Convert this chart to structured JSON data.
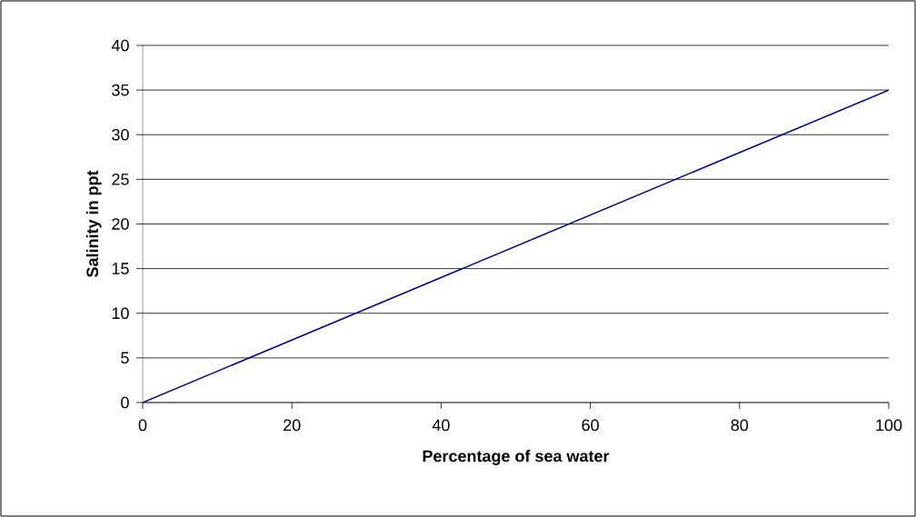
{
  "chart_data": {
    "type": "line",
    "xlabel": "Percentage of sea water",
    "ylabel": "Salinity in ppt",
    "x": [
      0,
      100
    ],
    "series": [
      {
        "color": "#000080",
        "values": [
          0,
          35
        ]
      }
    ],
    "xlim": [
      0,
      100
    ],
    "xticks": [
      0,
      20,
      40,
      60,
      80,
      100
    ],
    "ylim": [
      0,
      40
    ],
    "yticks": [
      0,
      5,
      10,
      15,
      20,
      25,
      30,
      35,
      40
    ],
    "grid": "y",
    "marker": "none",
    "line_style": "solid"
  }
}
